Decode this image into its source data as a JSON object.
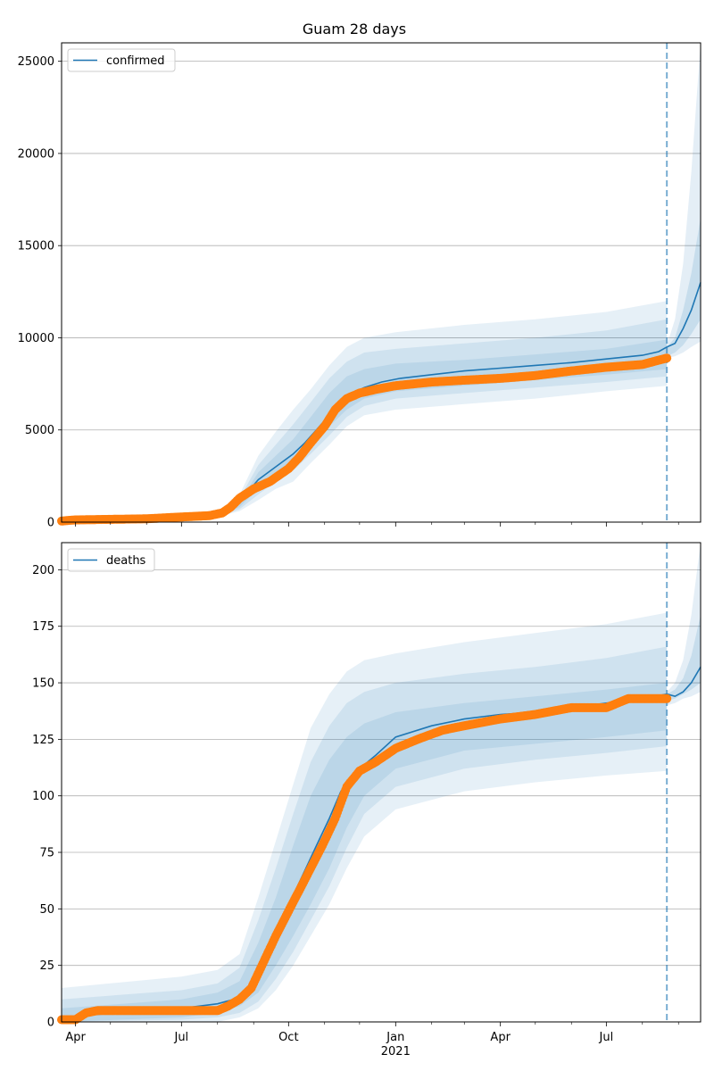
{
  "chart_data": [
    {
      "type": "line",
      "title": "Guam 28 days",
      "legend": [
        "confirmed"
      ],
      "legend_position": "top-left",
      "grid": "horizontal",
      "ylim": [
        0,
        26000
      ],
      "yticks": [
        0,
        5000,
        10000,
        15000,
        20000,
        25000
      ],
      "xlim": [
        "2020-03-20",
        "2021-09-20"
      ],
      "forecast_start": "2021-08-22",
      "colors": {
        "model": "#1f77b4",
        "observed": "#ff7f0e",
        "band": "#1f77b4"
      },
      "series": [
        {
          "name": "confirmed",
          "role": "model",
          "x": [
            "2020-03-20",
            "2020-04-20",
            "2020-06-01",
            "2020-07-15",
            "2020-08-05",
            "2020-08-15",
            "2020-08-25",
            "2020-09-05",
            "2020-09-20",
            "2020-10-05",
            "2020-10-15",
            "2020-10-25",
            "2020-11-05",
            "2020-11-15",
            "2020-11-25",
            "2020-12-05",
            "2020-12-20",
            "2021-01-05",
            "2021-02-01",
            "2021-03-01",
            "2021-04-01",
            "2021-05-01",
            "2021-06-01",
            "2021-07-01",
            "2021-08-01",
            "2021-08-15",
            "2021-08-22"
          ],
          "y": [
            80,
            120,
            170,
            280,
            450,
            800,
            1500,
            2300,
            3000,
            3700,
            4300,
            5000,
            5800,
            6500,
            7000,
            7300,
            7600,
            7800,
            8000,
            8200,
            8350,
            8500,
            8650,
            8850,
            9050,
            9250,
            9500
          ]
        },
        {
          "name": "forecast",
          "role": "forecast",
          "x": [
            "2021-08-22",
            "2021-08-29",
            "2021-09-05",
            "2021-09-12",
            "2021-09-20"
          ],
          "y": [
            9500,
            9700,
            10500,
            11500,
            13000
          ]
        },
        {
          "name": "observed",
          "role": "observed",
          "x": [
            "2020-03-20",
            "2020-04-01",
            "2020-05-01",
            "2020-06-01",
            "2020-07-01",
            "2020-07-25",
            "2020-08-05",
            "2020-08-12",
            "2020-08-20",
            "2020-09-01",
            "2020-09-15",
            "2020-10-01",
            "2020-10-10",
            "2020-10-20",
            "2020-11-01",
            "2020-11-10",
            "2020-11-20",
            "2020-12-01",
            "2020-12-15",
            "2021-01-01",
            "2021-02-01",
            "2021-03-01",
            "2021-04-01",
            "2021-05-01",
            "2021-06-01",
            "2021-07-01",
            "2021-08-01",
            "2021-08-22"
          ],
          "y": [
            60,
            120,
            150,
            180,
            280,
            350,
            500,
            800,
            1300,
            1800,
            2200,
            2900,
            3500,
            4300,
            5200,
            6100,
            6700,
            7000,
            7200,
            7400,
            7600,
            7700,
            7800,
            7950,
            8200,
            8400,
            8550,
            8900
          ]
        }
      ],
      "bands": [
        {
          "level": "outer",
          "x": [
            "2020-08-05",
            "2020-08-20",
            "2020-09-05",
            "2020-09-20",
            "2020-10-05",
            "2020-10-20",
            "2020-11-05",
            "2020-11-20",
            "2020-12-05",
            "2021-01-01",
            "2021-03-01",
            "2021-05-01",
            "2021-07-01",
            "2021-08-22"
          ],
          "lower": [
            350,
            600,
            1200,
            1800,
            2200,
            3200,
            4200,
            5200,
            5800,
            6100,
            6400,
            6700,
            7100,
            7400
          ],
          "upper": [
            650,
            1500,
            3600,
            4900,
            6100,
            7200,
            8500,
            9500,
            10000,
            10300,
            10700,
            11000,
            11400,
            12000
          ]
        },
        {
          "level": "middle",
          "x": [
            "2020-08-05",
            "2020-08-20",
            "2020-09-05",
            "2020-09-20",
            "2020-10-05",
            "2020-10-20",
            "2020-11-05",
            "2020-11-20",
            "2020-12-05",
            "2021-01-01",
            "2021-03-01",
            "2021-05-01",
            "2021-07-01",
            "2021-08-22"
          ],
          "lower": [
            380,
            700,
            1500,
            2200,
            2800,
            3700,
            4700,
            5700,
            6300,
            6700,
            7000,
            7300,
            7600,
            7900
          ],
          "upper": [
            600,
            1300,
            3100,
            4200,
            5300,
            6500,
            7800,
            8700,
            9200,
            9400,
            9700,
            10000,
            10400,
            11000
          ]
        },
        {
          "level": "inner",
          "x": [
            "2020-08-05",
            "2020-08-20",
            "2020-09-05",
            "2020-09-20",
            "2020-10-05",
            "2020-10-20",
            "2020-11-05",
            "2020-11-20",
            "2020-12-05",
            "2021-01-01",
            "2021-03-01",
            "2021-05-01",
            "2021-07-01",
            "2021-08-22"
          ],
          "lower": [
            410,
            820,
            1800,
            2600,
            3300,
            4200,
            5200,
            6100,
            6700,
            7100,
            7400,
            7700,
            8000,
            8300
          ],
          "upper": [
            550,
            1100,
            2700,
            3600,
            4500,
            5700,
            7000,
            7900,
            8300,
            8600,
            8800,
            9100,
            9400,
            9900
          ]
        },
        {
          "level": "forecast-outer",
          "x": [
            "2021-08-22",
            "2021-08-29",
            "2021-09-05",
            "2021-09-12",
            "2021-09-20"
          ],
          "lower": [
            8900,
            9000,
            9200,
            9500,
            9800
          ],
          "upper": [
            9600,
            11000,
            14000,
            19000,
            26000
          ]
        },
        {
          "level": "forecast-inner",
          "x": [
            "2021-08-22",
            "2021-08-29",
            "2021-09-05",
            "2021-09-12",
            "2021-09-20"
          ],
          "lower": [
            9000,
            9200,
            9600,
            10200,
            11000
          ],
          "upper": [
            9500,
            10000,
            11500,
            13500,
            16500
          ]
        }
      ]
    },
    {
      "type": "line",
      "title": "",
      "legend": [
        "deaths"
      ],
      "legend_position": "top-left",
      "grid": "horizontal",
      "ylim": [
        0,
        212
      ],
      "yticks": [
        0,
        25,
        50,
        75,
        100,
        125,
        150,
        175,
        200
      ],
      "xlim": [
        "2020-03-20",
        "2021-09-20"
      ],
      "xticks": [
        {
          "date": "2020-04-01",
          "label": "Apr"
        },
        {
          "date": "2020-07-01",
          "label": "Jul"
        },
        {
          "date": "2020-10-01",
          "label": "Oct"
        },
        {
          "date": "2021-01-01",
          "label": "Jan",
          "sublabel": "2021"
        },
        {
          "date": "2021-04-01",
          "label": "Apr"
        },
        {
          "date": "2021-07-01",
          "label": "Jul"
        }
      ],
      "forecast_start": "2021-08-22",
      "colors": {
        "model": "#1f77b4",
        "observed": "#ff7f0e",
        "band": "#1f77b4"
      },
      "series": [
        {
          "name": "deaths",
          "role": "model",
          "x": [
            "2020-03-20",
            "2020-04-10",
            "2020-07-01",
            "2020-08-01",
            "2020-08-15",
            "2020-08-25",
            "2020-09-05",
            "2020-09-15",
            "2020-09-25",
            "2020-10-05",
            "2020-10-15",
            "2020-10-25",
            "2020-11-05",
            "2020-11-15",
            "2020-12-01",
            "2020-12-15",
            "2021-01-01",
            "2021-02-01",
            "2021-03-01",
            "2021-04-01",
            "2021-05-01",
            "2021-06-01",
            "2021-07-01",
            "2021-08-01",
            "2021-08-22"
          ],
          "y": [
            1,
            3,
            6,
            8,
            10,
            13,
            20,
            33,
            45,
            56,
            67,
            78,
            90,
            102,
            112,
            118,
            126,
            131,
            134,
            136,
            137,
            139,
            141,
            143,
            145
          ]
        },
        {
          "name": "forecast",
          "role": "forecast",
          "x": [
            "2021-08-22",
            "2021-08-29",
            "2021-09-05",
            "2021-09-12",
            "2021-09-20"
          ],
          "y": [
            145,
            144,
            146,
            150,
            157
          ]
        },
        {
          "name": "observed",
          "role": "observed",
          "x": [
            "2020-03-20",
            "2020-04-01",
            "2020-04-10",
            "2020-04-20",
            "2020-08-01",
            "2020-08-10",
            "2020-08-20",
            "2020-08-30",
            "2020-09-10",
            "2020-09-20",
            "2020-09-30",
            "2020-10-10",
            "2020-10-20",
            "2020-10-30",
            "2020-11-10",
            "2020-11-20",
            "2020-12-01",
            "2020-12-15",
            "2021-01-01",
            "2021-01-20",
            "2021-02-10",
            "2021-03-01",
            "2021-04-01",
            "2021-05-01",
            "2021-06-01",
            "2021-07-01",
            "2021-07-20",
            "2021-08-22"
          ],
          "y": [
            1,
            1,
            4,
            5,
            5,
            7,
            10,
            15,
            27,
            38,
            48,
            58,
            68,
            78,
            90,
            104,
            111,
            115,
            121,
            125,
            129,
            131,
            134,
            136,
            139,
            139,
            143,
            143
          ]
        }
      ],
      "bands": [
        {
          "level": "outer",
          "x": [
            "2020-03-20",
            "2020-07-01",
            "2020-08-01",
            "2020-08-20",
            "2020-09-05",
            "2020-09-20",
            "2020-10-05",
            "2020-10-20",
            "2020-11-05",
            "2020-11-20",
            "2020-12-05",
            "2021-01-01",
            "2021-03-01",
            "2021-05-01",
            "2021-07-01",
            "2021-08-22"
          ],
          "lower": [
            0,
            0,
            0,
            2,
            6,
            14,
            25,
            38,
            52,
            68,
            82,
            94,
            102,
            106,
            109,
            111
          ],
          "upper": [
            15,
            20,
            23,
            30,
            55,
            80,
            105,
            130,
            145,
            155,
            160,
            163,
            168,
            172,
            176,
            181
          ]
        },
        {
          "level": "middle",
          "x": [
            "2020-03-20",
            "2020-07-01",
            "2020-08-01",
            "2020-08-20",
            "2020-09-05",
            "2020-09-20",
            "2020-10-05",
            "2020-10-20",
            "2020-11-05",
            "2020-11-20",
            "2020-12-05",
            "2021-01-01",
            "2021-03-01",
            "2021-05-01",
            "2021-07-01",
            "2021-08-22"
          ],
          "lower": [
            0,
            1,
            2,
            4,
            9,
            19,
            31,
            45,
            60,
            77,
            92,
            104,
            112,
            116,
            119,
            122
          ],
          "upper": [
            10,
            14,
            17,
            24,
            45,
            68,
            92,
            115,
            131,
            141,
            146,
            150,
            154,
            157,
            161,
            166
          ]
        },
        {
          "level": "inner",
          "x": [
            "2020-03-20",
            "2020-07-01",
            "2020-08-01",
            "2020-08-20",
            "2020-09-05",
            "2020-09-20",
            "2020-10-05",
            "2020-10-20",
            "2020-11-05",
            "2020-11-20",
            "2020-12-05",
            "2021-01-01",
            "2021-03-01",
            "2021-05-01",
            "2021-07-01",
            "2021-08-22"
          ],
          "lower": [
            0,
            2,
            4,
            7,
            13,
            25,
            38,
            52,
            68,
            86,
            100,
            112,
            120,
            123,
            126,
            129
          ],
          "upper": [
            6,
            10,
            13,
            18,
            35,
            55,
            78,
            100,
            116,
            126,
            132,
            137,
            141,
            144,
            147,
            150
          ]
        },
        {
          "level": "forecast-outer",
          "x": [
            "2021-08-22",
            "2021-08-29",
            "2021-09-05",
            "2021-09-12",
            "2021-09-20"
          ],
          "lower": [
            140,
            141,
            143,
            144,
            146
          ],
          "upper": [
            146,
            150,
            160,
            180,
            212
          ]
        },
        {
          "level": "forecast-inner",
          "x": [
            "2021-08-22",
            "2021-08-29",
            "2021-09-05",
            "2021-09-12",
            "2021-09-20"
          ],
          "lower": [
            142,
            143,
            145,
            147,
            150
          ],
          "upper": [
            145,
            147,
            152,
            162,
            180
          ]
        }
      ]
    }
  ]
}
